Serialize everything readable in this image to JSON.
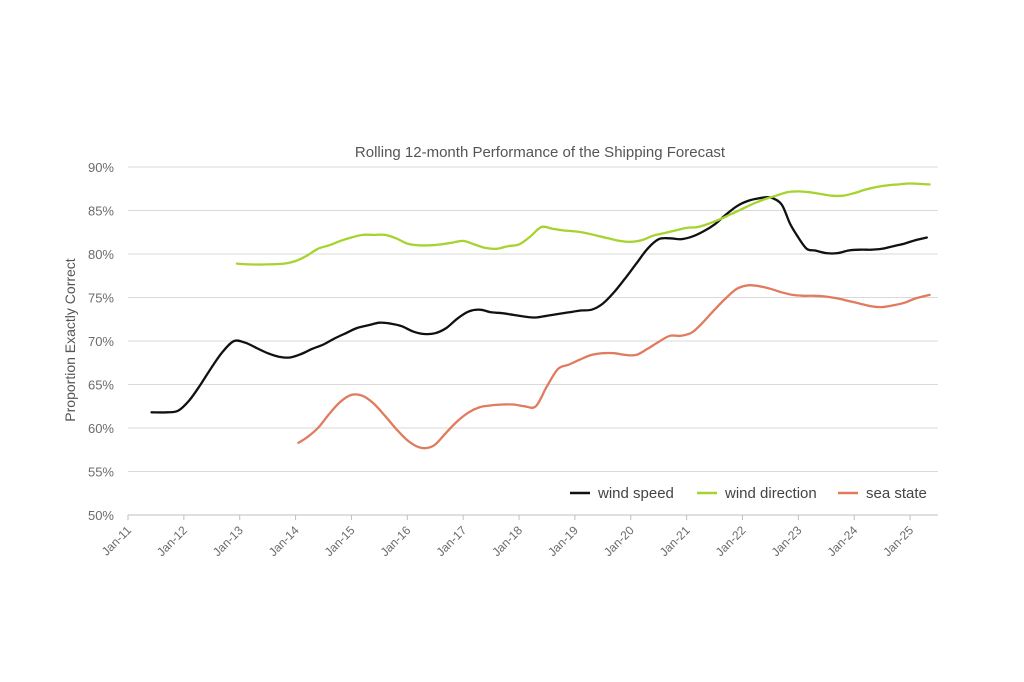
{
  "chart_data": {
    "type": "line",
    "title": "Rolling 12-month Performance of the Shipping Forecast",
    "xlabel": "",
    "ylabel": "Proportion Exactly Correct",
    "ylim": [
      50,
      90
    ],
    "y_ticks": [
      "50%",
      "55%",
      "60%",
      "65%",
      "70%",
      "75%",
      "80%",
      "85%",
      "90%"
    ],
    "x_ticks": [
      "Jan-11",
      "Jan-12",
      "Jan-13",
      "Jan-14",
      "Jan-15",
      "Jan-16",
      "Jan-17",
      "Jan-18",
      "Jan-19",
      "Jan-20",
      "Jan-21",
      "Jan-22",
      "Jan-23",
      "Jan-24",
      "Jan-25"
    ],
    "x_unit": "year",
    "grid": true,
    "legend_position": "bottom-right",
    "series": [
      {
        "name": "wind speed",
        "color": "#111111",
        "points": [
          [
            2011.42,
            61.8
          ],
          [
            2011.7,
            61.8
          ],
          [
            2011.9,
            62.0
          ],
          [
            2012.1,
            63.2
          ],
          [
            2012.3,
            65.0
          ],
          [
            2012.5,
            67.0
          ],
          [
            2012.7,
            68.8
          ],
          [
            2012.9,
            70.0
          ],
          [
            2013.1,
            69.8
          ],
          [
            2013.3,
            69.2
          ],
          [
            2013.5,
            68.6
          ],
          [
            2013.7,
            68.2
          ],
          [
            2013.9,
            68.1
          ],
          [
            2014.1,
            68.5
          ],
          [
            2014.3,
            69.1
          ],
          [
            2014.5,
            69.6
          ],
          [
            2014.7,
            70.3
          ],
          [
            2014.9,
            70.9
          ],
          [
            2015.1,
            71.5
          ],
          [
            2015.3,
            71.8
          ],
          [
            2015.5,
            72.1
          ],
          [
            2015.7,
            72.0
          ],
          [
            2015.9,
            71.7
          ],
          [
            2016.1,
            71.1
          ],
          [
            2016.3,
            70.8
          ],
          [
            2016.5,
            70.9
          ],
          [
            2016.7,
            71.5
          ],
          [
            2016.9,
            72.6
          ],
          [
            2017.1,
            73.4
          ],
          [
            2017.3,
            73.6
          ],
          [
            2017.5,
            73.3
          ],
          [
            2017.7,
            73.2
          ],
          [
            2017.9,
            73.0
          ],
          [
            2018.1,
            72.8
          ],
          [
            2018.3,
            72.7
          ],
          [
            2018.5,
            72.9
          ],
          [
            2018.7,
            73.1
          ],
          [
            2018.9,
            73.3
          ],
          [
            2019.1,
            73.5
          ],
          [
            2019.3,
            73.6
          ],
          [
            2019.5,
            74.3
          ],
          [
            2019.7,
            75.6
          ],
          [
            2019.9,
            77.2
          ],
          [
            2020.1,
            78.9
          ],
          [
            2020.3,
            80.6
          ],
          [
            2020.5,
            81.7
          ],
          [
            2020.7,
            81.8
          ],
          [
            2020.9,
            81.7
          ],
          [
            2021.1,
            82.0
          ],
          [
            2021.3,
            82.6
          ],
          [
            2021.5,
            83.4
          ],
          [
            2021.7,
            84.5
          ],
          [
            2021.9,
            85.5
          ],
          [
            2022.1,
            86.1
          ],
          [
            2022.3,
            86.4
          ],
          [
            2022.5,
            86.5
          ],
          [
            2022.7,
            85.7
          ],
          [
            2022.85,
            83.5
          ],
          [
            2023.0,
            81.9
          ],
          [
            2023.15,
            80.6
          ],
          [
            2023.3,
            80.4
          ],
          [
            2023.5,
            80.1
          ],
          [
            2023.7,
            80.1
          ],
          [
            2023.9,
            80.4
          ],
          [
            2024.1,
            80.5
          ],
          [
            2024.3,
            80.5
          ],
          [
            2024.5,
            80.6
          ],
          [
            2024.7,
            80.9
          ],
          [
            2024.9,
            81.2
          ],
          [
            2025.1,
            81.6
          ],
          [
            2025.3,
            81.9
          ]
        ]
      },
      {
        "name": "wind direction",
        "color": "#a6d32e",
        "points": [
          [
            2012.95,
            78.9
          ],
          [
            2013.2,
            78.8
          ],
          [
            2013.5,
            78.8
          ],
          [
            2013.8,
            78.9
          ],
          [
            2014.0,
            79.2
          ],
          [
            2014.2,
            79.8
          ],
          [
            2014.4,
            80.6
          ],
          [
            2014.6,
            81.0
          ],
          [
            2014.8,
            81.5
          ],
          [
            2015.0,
            81.9
          ],
          [
            2015.2,
            82.2
          ],
          [
            2015.4,
            82.2
          ],
          [
            2015.6,
            82.2
          ],
          [
            2015.8,
            81.8
          ],
          [
            2016.0,
            81.2
          ],
          [
            2016.2,
            81.0
          ],
          [
            2016.4,
            81.0
          ],
          [
            2016.6,
            81.1
          ],
          [
            2016.8,
            81.3
          ],
          [
            2017.0,
            81.5
          ],
          [
            2017.2,
            81.1
          ],
          [
            2017.4,
            80.7
          ],
          [
            2017.6,
            80.6
          ],
          [
            2017.8,
            80.9
          ],
          [
            2018.0,
            81.1
          ],
          [
            2018.2,
            82.0
          ],
          [
            2018.4,
            83.1
          ],
          [
            2018.6,
            82.9
          ],
          [
            2018.8,
            82.7
          ],
          [
            2019.0,
            82.6
          ],
          [
            2019.2,
            82.4
          ],
          [
            2019.4,
            82.1
          ],
          [
            2019.6,
            81.8
          ],
          [
            2019.8,
            81.5
          ],
          [
            2020.0,
            81.4
          ],
          [
            2020.2,
            81.6
          ],
          [
            2020.4,
            82.1
          ],
          [
            2020.6,
            82.4
          ],
          [
            2020.8,
            82.7
          ],
          [
            2021.0,
            83.0
          ],
          [
            2021.2,
            83.1
          ],
          [
            2021.4,
            83.5
          ],
          [
            2021.6,
            84.0
          ],
          [
            2021.8,
            84.6
          ],
          [
            2022.0,
            85.2
          ],
          [
            2022.2,
            85.8
          ],
          [
            2022.4,
            86.3
          ],
          [
            2022.6,
            86.7
          ],
          [
            2022.8,
            87.1
          ],
          [
            2023.0,
            87.2
          ],
          [
            2023.2,
            87.1
          ],
          [
            2023.4,
            86.9
          ],
          [
            2023.6,
            86.7
          ],
          [
            2023.8,
            86.7
          ],
          [
            2024.0,
            87.0
          ],
          [
            2024.2,
            87.4
          ],
          [
            2024.4,
            87.7
          ],
          [
            2024.6,
            87.9
          ],
          [
            2024.8,
            88.0
          ],
          [
            2025.0,
            88.1
          ],
          [
            2025.35,
            88.0
          ]
        ]
      },
      {
        "name": "sea state",
        "color": "#e07b5e",
        "points": [
          [
            2014.05,
            58.3
          ],
          [
            2014.2,
            58.9
          ],
          [
            2014.4,
            60.0
          ],
          [
            2014.6,
            61.6
          ],
          [
            2014.8,
            63.0
          ],
          [
            2015.0,
            63.8
          ],
          [
            2015.2,
            63.7
          ],
          [
            2015.4,
            62.8
          ],
          [
            2015.6,
            61.4
          ],
          [
            2015.8,
            59.9
          ],
          [
            2016.0,
            58.6
          ],
          [
            2016.2,
            57.8
          ],
          [
            2016.35,
            57.7
          ],
          [
            2016.5,
            58.1
          ],
          [
            2016.7,
            59.5
          ],
          [
            2016.9,
            60.8
          ],
          [
            2017.1,
            61.8
          ],
          [
            2017.3,
            62.4
          ],
          [
            2017.5,
            62.6
          ],
          [
            2017.7,
            62.7
          ],
          [
            2017.9,
            62.7
          ],
          [
            2018.1,
            62.5
          ],
          [
            2018.3,
            62.5
          ],
          [
            2018.5,
            64.8
          ],
          [
            2018.7,
            66.8
          ],
          [
            2018.9,
            67.3
          ],
          [
            2019.1,
            67.9
          ],
          [
            2019.3,
            68.4
          ],
          [
            2019.5,
            68.6
          ],
          [
            2019.7,
            68.6
          ],
          [
            2019.9,
            68.4
          ],
          [
            2020.1,
            68.4
          ],
          [
            2020.3,
            69.1
          ],
          [
            2020.5,
            69.9
          ],
          [
            2020.7,
            70.6
          ],
          [
            2020.9,
            70.6
          ],
          [
            2021.1,
            71.0
          ],
          [
            2021.3,
            72.2
          ],
          [
            2021.5,
            73.6
          ],
          [
            2021.7,
            74.9
          ],
          [
            2021.9,
            76.0
          ],
          [
            2022.1,
            76.4
          ],
          [
            2022.3,
            76.3
          ],
          [
            2022.5,
            76.0
          ],
          [
            2022.7,
            75.6
          ],
          [
            2022.9,
            75.3
          ],
          [
            2023.1,
            75.2
          ],
          [
            2023.3,
            75.2
          ],
          [
            2023.5,
            75.1
          ],
          [
            2023.7,
            74.9
          ],
          [
            2023.9,
            74.6
          ],
          [
            2024.1,
            74.3
          ],
          [
            2024.3,
            74.0
          ],
          [
            2024.5,
            73.9
          ],
          [
            2024.7,
            74.1
          ],
          [
            2024.9,
            74.4
          ],
          [
            2025.1,
            74.9
          ],
          [
            2025.35,
            75.3
          ]
        ]
      }
    ]
  }
}
